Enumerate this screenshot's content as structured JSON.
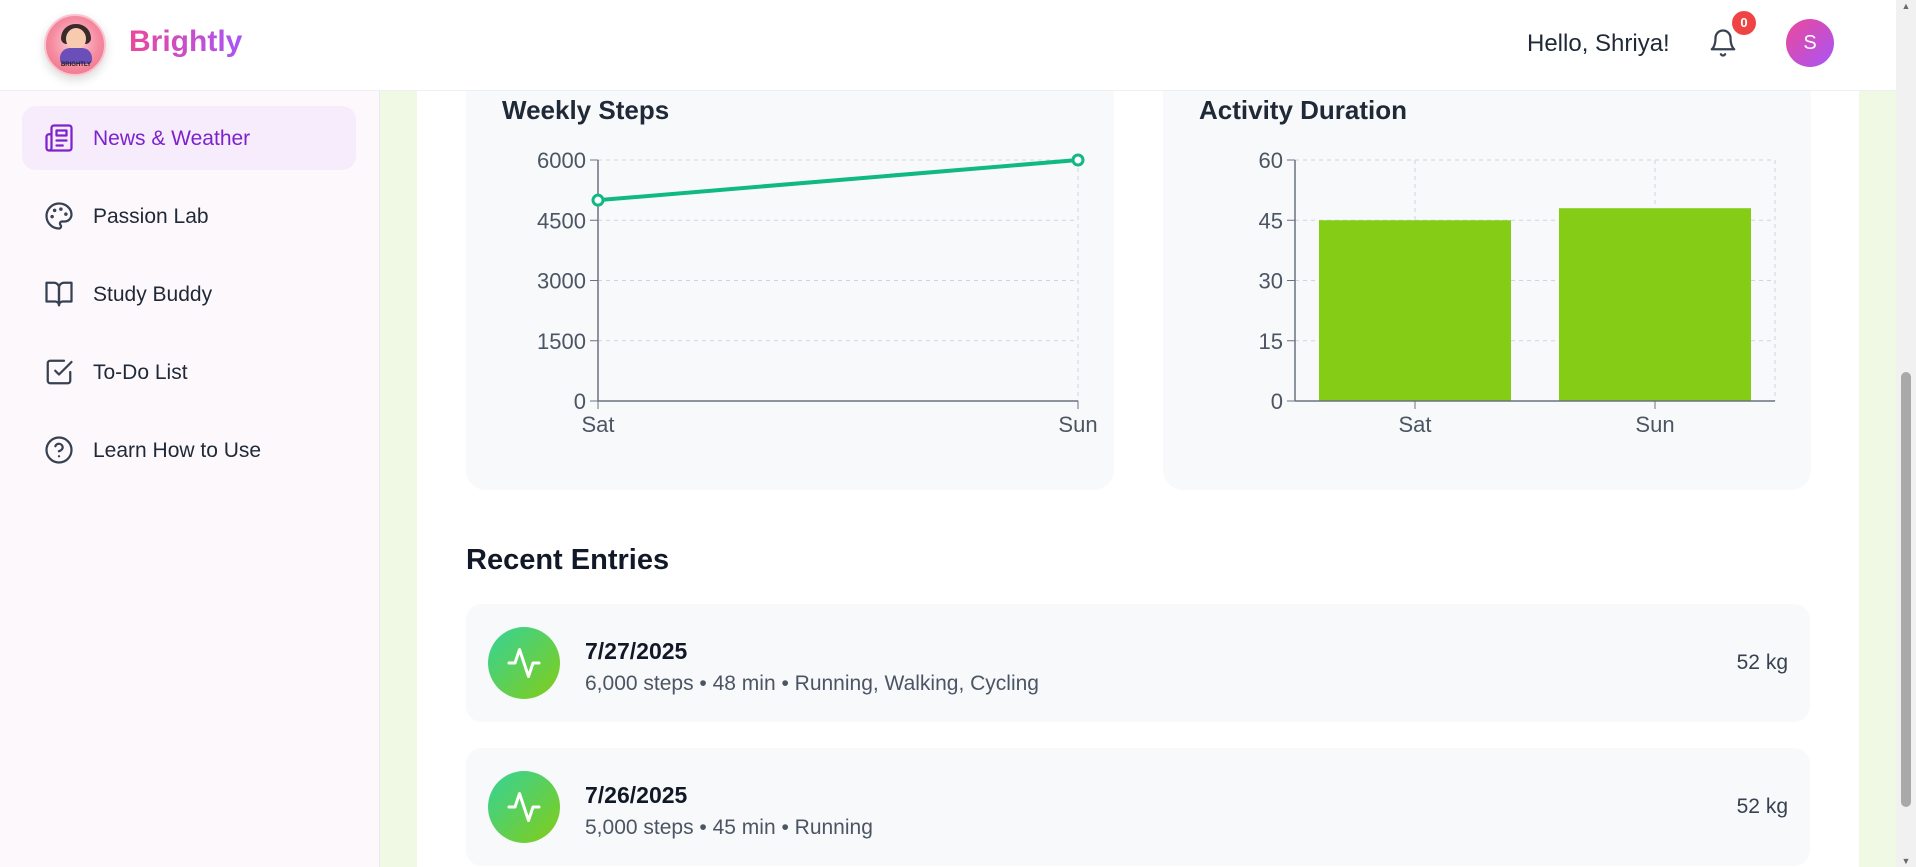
{
  "header": {
    "brand": "Brightly",
    "logo_text": "BRIGHTLY",
    "greeting": "Hello, Shriya!",
    "notification_count": "0",
    "avatar_initial": "S"
  },
  "sidebar": {
    "items": [
      {
        "label": "News & Weather",
        "icon": "newspaper-icon",
        "active": true
      },
      {
        "label": "Passion Lab",
        "icon": "palette-icon",
        "active": false
      },
      {
        "label": "Study Buddy",
        "icon": "book-open-icon",
        "active": false
      },
      {
        "label": "To-Do List",
        "icon": "check-square-icon",
        "active": false
      },
      {
        "label": "Learn How to Use",
        "icon": "help-circle-icon",
        "active": false
      }
    ]
  },
  "colors": {
    "brand_gradient_start": "#ec4899",
    "brand_gradient_end": "#a855f7",
    "line_series": "#10b981",
    "bar_series": "#84cc16",
    "badge": "#ef4444"
  },
  "chart_data": [
    {
      "type": "line",
      "title": "Weekly Steps",
      "categories": [
        "Sat",
        "Sun"
      ],
      "values": [
        5000,
        6000
      ],
      "yticks": [
        "0",
        "1500",
        "3000",
        "4500",
        "6000"
      ],
      "ylim": [
        0,
        6000
      ],
      "grid": true
    },
    {
      "type": "bar",
      "title": "Activity Duration",
      "categories": [
        "Sat",
        "Sun"
      ],
      "values": [
        45,
        48
      ],
      "yticks": [
        "0",
        "15",
        "30",
        "45",
        "60"
      ],
      "ylim": [
        0,
        60
      ],
      "grid": true
    }
  ],
  "recent": {
    "title": "Recent Entries",
    "entries": [
      {
        "date": "7/27/2025",
        "detail": "6,000 steps • 48 min • Running, Walking, Cycling",
        "weight": "52 kg"
      },
      {
        "date": "7/26/2025",
        "detail": "5,000 steps • 45 min • Running",
        "weight": "52 kg"
      }
    ]
  }
}
